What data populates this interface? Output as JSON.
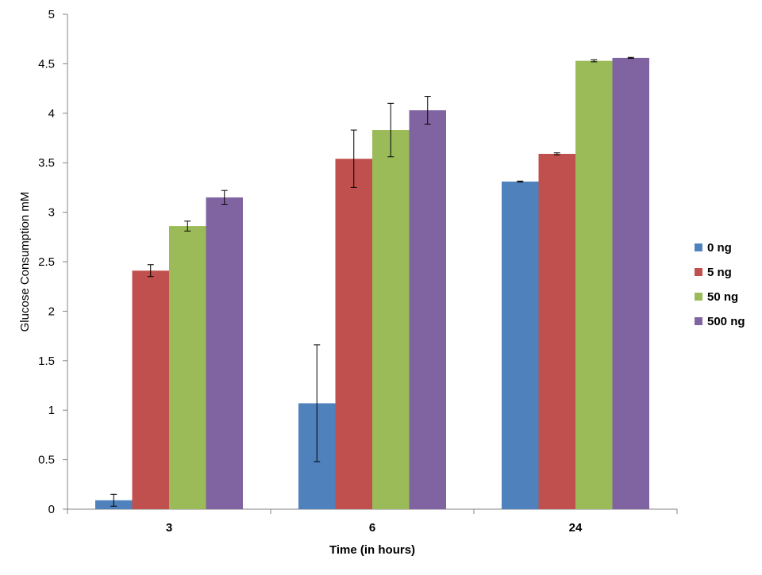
{
  "chart_data": {
    "type": "bar",
    "title": "",
    "xlabel": "Time (in hours)",
    "ylabel": "Glucose Consumption mM",
    "categories": [
      "3",
      "6",
      "24"
    ],
    "ylim": [
      0,
      5
    ],
    "yticks": [
      0,
      0.5,
      1,
      1.5,
      2,
      2.5,
      3,
      3.5,
      4,
      4.5,
      5
    ],
    "yticklabels": [
      "0",
      "0.5",
      "1",
      "1.5",
      "2",
      "2.5",
      "3",
      "3.5",
      "4",
      "4.5",
      "5"
    ],
    "grid": false,
    "legend_position": "right",
    "series": [
      {
        "name": "0 ng",
        "color": "#4F81BD",
        "values": [
          0.09,
          1.07,
          3.31
        ],
        "errors": [
          0.06,
          0.59,
          0.005
        ]
      },
      {
        "name": "5 ng",
        "color": "#C0504D",
        "values": [
          2.41,
          3.54,
          3.59
        ],
        "errors": [
          0.06,
          0.29,
          0.01
        ]
      },
      {
        "name": "50 ng",
        "color": "#9BBB59",
        "values": [
          2.86,
          3.83,
          4.53
        ],
        "errors": [
          0.05,
          0.27,
          0.01
        ]
      },
      {
        "name": "500 ng",
        "color": "#8064A2",
        "values": [
          3.15,
          4.03,
          4.56
        ],
        "errors": [
          0.07,
          0.14,
          0.005
        ]
      }
    ]
  }
}
